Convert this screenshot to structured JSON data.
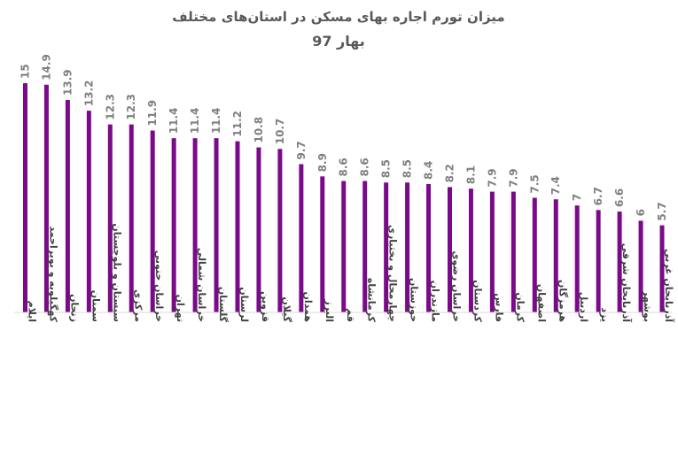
{
  "chart_data": {
    "type": "bar",
    "title": "میزان تورم اجاره بهای مسکن در استان‌های مختلف",
    "subtitle": "بهار 97",
    "bar_color": "#7b0a8a",
    "ylim": [
      0,
      15
    ],
    "grid": false,
    "legend": "none",
    "categories": [
      "ایلام",
      "کهگیلویه و بویراحمد",
      "زنجان",
      "سمنان",
      "سیستان و بلوچستان",
      "مرکزی",
      "خراسان جنوبی",
      "تهران",
      "خراسان شمالی",
      "گلستان",
      "لرستان",
      "قزوین",
      "گیلان",
      "همدان",
      "البرز",
      "قم",
      "کرمانشاه",
      "چهارمحال و بختیاری",
      "خوزستان",
      "مازندران",
      "خراسان رضوی",
      "کردستان",
      "فارس",
      "کرمان",
      "اصفهان",
      "هرمزگان",
      "اردبیل",
      "یزد",
      "آذربایجان شرقی",
      "بوشهر",
      "آذربایجان غربی"
    ],
    "values": [
      15,
      14.9,
      13.9,
      13.2,
      12.3,
      12.3,
      11.9,
      11.4,
      11.4,
      11.4,
      11.2,
      10.8,
      10.7,
      9.7,
      8.9,
      8.6,
      8.6,
      8.5,
      8.5,
      8.4,
      8.2,
      8.1,
      7.9,
      7.9,
      7.5,
      7.4,
      7,
      6.7,
      6.6,
      6,
      5.7
    ]
  }
}
